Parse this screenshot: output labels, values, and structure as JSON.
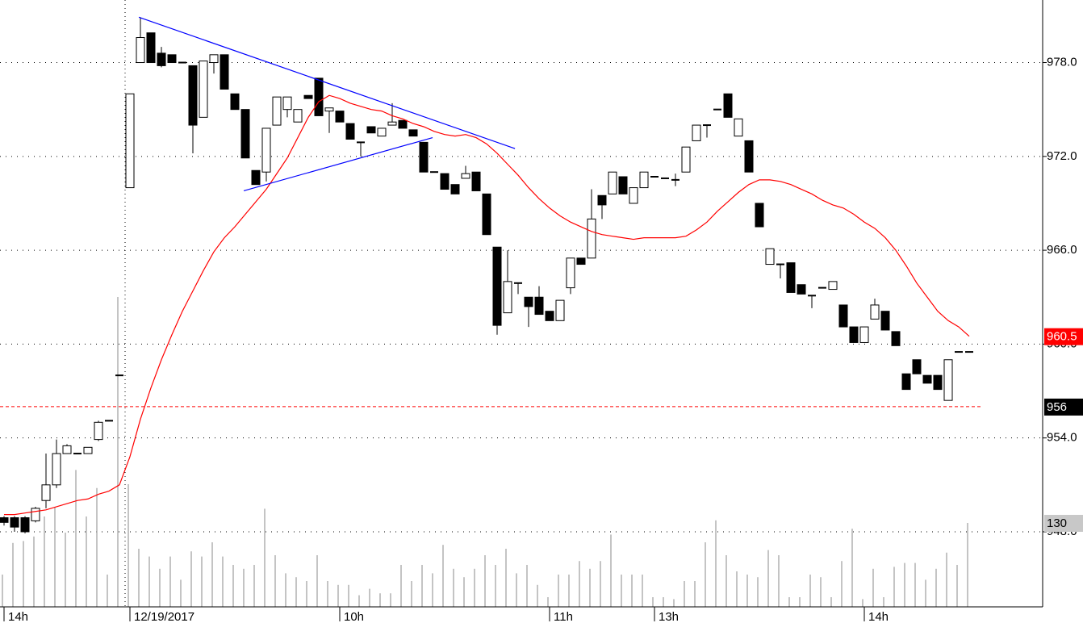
{
  "chart_data": {
    "type": "candlestick",
    "categories": [
      "14h",
      null,
      null,
      null,
      null,
      null,
      null,
      null,
      null,
      null,
      null,
      null,
      "12/19/2017",
      null,
      null,
      null,
      null,
      null,
      null,
      null,
      null,
      null,
      null,
      null,
      null,
      null,
      null,
      null,
      null,
      null,
      null,
      null,
      "10h",
      null,
      null,
      null,
      null,
      null,
      null,
      null,
      null,
      null,
      null,
      null,
      null,
      null,
      null,
      null,
      null,
      null,
      null,
      null,
      "11h",
      null,
      null,
      null,
      null,
      null,
      null,
      null,
      null,
      null,
      "13h",
      null,
      null,
      null,
      null,
      null,
      null,
      null,
      null,
      null,
      null,
      null,
      null,
      null,
      null,
      null,
      null,
      null,
      null,
      null,
      "14h",
      null,
      null,
      null,
      null,
      null,
      null,
      null,
      null,
      null,
      null
    ],
    "open": [
      948.9,
      948.9,
      948.9,
      948.7,
      950.0,
      951.0,
      953.0,
      953.0,
      953.0,
      953.9,
      955.1,
      958.0,
      970.0,
      978.0,
      979.9,
      978.6,
      978.5,
      978.0,
      977.8,
      974.5,
      978.0,
      978.5,
      976.0,
      975.0,
      971.1,
      971.0,
      974.0,
      975.0,
      974.2,
      975.9,
      977.0,
      974.9,
      974.9,
      974.1,
      972.9,
      973.9,
      973.3,
      974.0,
      974.3,
      973.7,
      972.9,
      971.0,
      970.9,
      970.2,
      970.6,
      971.0,
      969.6,
      966.2,
      962.0,
      963.9,
      963.0,
      963.0,
      962.1,
      961.5,
      963.6,
      965.5,
      965.5,
      969.5,
      969.6,
      970.7,
      969.0,
      970.0,
      970.7,
      970.6,
      970.5,
      971.0,
      973.0,
      974.0,
      975.0,
      976.0,
      973.3,
      973.0,
      969.0,
      965.1,
      965.1,
      965.2,
      963.8,
      963.1,
      963.6,
      963.5,
      962.5,
      961.1,
      960.1,
      961.6,
      962.1,
      960.8,
      958.1,
      959.0,
      958.0,
      958.0,
      956.4,
      959.5,
      959.5
    ],
    "high": [
      949.0,
      949.0,
      949.0,
      949.6,
      953.0,
      953.9,
      953.6,
      953.0,
      953.4,
      955.1,
      955.1,
      958.0,
      976.0,
      980.9,
      979.9,
      979.0,
      978.5,
      978.0,
      977.8,
      978.1,
      978.5,
      978.5,
      976.0,
      975.0,
      971.1,
      973.8,
      975.8,
      975.8,
      975.0,
      975.9,
      977.0,
      975.1,
      974.9,
      974.1,
      972.9,
      973.9,
      973.8,
      975.4,
      974.3,
      973.7,
      972.9,
      971.0,
      970.9,
      970.2,
      971.4,
      971.0,
      969.6,
      966.2,
      966.0,
      963.9,
      963.0,
      963.7,
      962.1,
      962.8,
      965.5,
      965.5,
      969.9,
      969.5,
      971.0,
      970.7,
      970.0,
      971.0,
      970.7,
      970.6,
      970.9,
      972.6,
      974.0,
      974.0,
      975.0,
      976.0,
      974.4,
      973.0,
      969.0,
      966.1,
      965.1,
      965.2,
      963.8,
      963.1,
      963.6,
      964.0,
      962.5,
      961.1,
      961.1,
      962.9,
      962.1,
      960.8,
      958.1,
      959.0,
      958.0,
      958.0,
      959.0,
      959.5,
      959.5
    ],
    "low": [
      948.4,
      948.0,
      947.9,
      948.6,
      949.5,
      950.8,
      953.0,
      953.0,
      953.0,
      953.8,
      955.1,
      958.0,
      970.0,
      978.0,
      978.0,
      977.7,
      978.0,
      978.0,
      972.2,
      974.5,
      977.3,
      976.3,
      975.0,
      971.9,
      970.2,
      970.4,
      974.0,
      974.5,
      974.2,
      975.7,
      974.6,
      973.5,
      974.2,
      973.1,
      972.0,
      973.5,
      973.3,
      974.0,
      973.8,
      973.3,
      971.0,
      971.0,
      969.9,
      969.6,
      970.6,
      969.8,
      967.0,
      960.6,
      962.0,
      963.2,
      961.1,
      961.9,
      961.5,
      961.5,
      963.2,
      965.1,
      965.5,
      968.0,
      969.6,
      969.6,
      969.0,
      970.0,
      970.7,
      970.6,
      970.1,
      971.0,
      973.0,
      973.2,
      975.0,
      974.5,
      973.3,
      971.0,
      967.5,
      965.1,
      964.2,
      963.3,
      963.2,
      962.3,
      963.6,
      963.5,
      961.1,
      960.1,
      960.1,
      961.6,
      960.9,
      959.9,
      957.1,
      958.1,
      957.5,
      957.1,
      956.4,
      959.5,
      959.5
    ],
    "close": [
      948.6,
      948.3,
      948.0,
      949.5,
      951.0,
      953.0,
      953.5,
      953.0,
      953.4,
      955.0,
      955.1,
      958.0,
      976.0,
      979.6,
      978.0,
      977.8,
      978.0,
      978.0,
      974.0,
      978.1,
      978.5,
      976.3,
      975.0,
      971.9,
      970.2,
      973.8,
      975.8,
      975.8,
      975.0,
      975.7,
      974.6,
      975.1,
      974.2,
      973.1,
      972.9,
      973.5,
      973.8,
      974.2,
      973.8,
      973.3,
      971.0,
      971.0,
      969.9,
      969.6,
      970.9,
      969.8,
      967.0,
      961.2,
      964.0,
      963.9,
      962.4,
      961.9,
      961.5,
      962.8,
      965.5,
      965.1,
      968.0,
      968.9,
      971.0,
      969.6,
      970.0,
      971.0,
      970.7,
      970.6,
      970.5,
      972.6,
      974.0,
      974.0,
      975.0,
      974.5,
      974.4,
      971.0,
      967.5,
      966.1,
      965.1,
      963.3,
      963.2,
      963.1,
      963.6,
      964.0,
      961.1,
      960.1,
      961.1,
      962.5,
      960.9,
      959.9,
      957.1,
      958.1,
      957.5,
      957.1,
      959.0,
      959.5,
      959.5
    ],
    "up_color": "#ffffff",
    "down_color": "#000000",
    "ylim": [
      943.2,
      982
    ],
    "yticks": [
      {
        "value": 948,
        "label": "948.0"
      },
      {
        "value": 954,
        "label": "954.0"
      },
      {
        "value": 960,
        "label": "960.0"
      },
      {
        "value": 966,
        "label": "966.0"
      },
      {
        "value": 972,
        "label": "972.0"
      },
      {
        "value": 978,
        "label": "978.0"
      }
    ],
    "grid": true,
    "ma": {
      "color": "#ff0000",
      "values": [
        949.1,
        949.1,
        949.2,
        949.3,
        949.4,
        949.6,
        949.8,
        950.0,
        950.1,
        950.4,
        950.6,
        951.0,
        952.8,
        955.2,
        957.2,
        959.0,
        960.6,
        962.1,
        963.4,
        964.7,
        965.9,
        966.8,
        967.5,
        968.3,
        969.1,
        969.9,
        970.9,
        971.9,
        973.2,
        974.5,
        975.5,
        975.9,
        975.7,
        975.4,
        975.2,
        975.0,
        974.9,
        974.6,
        974.4,
        974.1,
        973.9,
        973.6,
        973.4,
        973.3,
        973.4,
        973.2,
        972.8,
        972.2,
        971.5,
        970.8,
        970.0,
        969.3,
        968.7,
        968.2,
        967.8,
        967.5,
        967.2,
        967.0,
        966.9,
        966.8,
        966.7,
        966.8,
        966.8,
        966.8,
        966.8,
        966.9,
        967.3,
        967.8,
        968.5,
        969.1,
        969.7,
        970.2,
        970.5,
        970.5,
        970.4,
        970.2,
        969.9,
        969.6,
        969.2,
        968.9,
        968.7,
        968.3,
        967.8,
        967.4,
        966.8,
        966.0,
        965.0,
        963.9,
        963.0,
        962.1,
        961.5,
        961.1,
        960.5
      ]
    },
    "volume": {
      "color": "#b0b0b0",
      "values": [
        50,
        99,
        102,
        109,
        140,
        155,
        115,
        212,
        140,
        184,
        50,
        480,
        190,
        90,
        78,
        59,
        78,
        42,
        86,
        78,
        100,
        78,
        65,
        59,
        65,
        152,
        80,
        52,
        46,
        40,
        80,
        40,
        34,
        34,
        18,
        28,
        21,
        21,
        65,
        40,
        65,
        52,
        96,
        59,
        46,
        59,
        80,
        65,
        90,
        52,
        65,
        34,
        15,
        50,
        50,
        71,
        59,
        71,
        112,
        50,
        50,
        50,
        15,
        15,
        12,
        40,
        40,
        100,
        134,
        80,
        55,
        50,
        46,
        88,
        80,
        15,
        15,
        50,
        46,
        15,
        71,
        121,
        12,
        59,
        15,
        62,
        68,
        68,
        42,
        59,
        84,
        65,
        130
      ]
    },
    "hline": {
      "value": 956,
      "color": "#ff0000"
    },
    "trendlines": [
      {
        "color": "#0000ff",
        "x": [
          12.85,
          48.7
        ],
        "values": [
          980.9,
          972.5
        ]
      },
      {
        "color": "#0000ff",
        "x": [
          22.85,
          40.85
        ],
        "values": [
          969.8,
          973.2
        ]
      }
    ]
  }
}
